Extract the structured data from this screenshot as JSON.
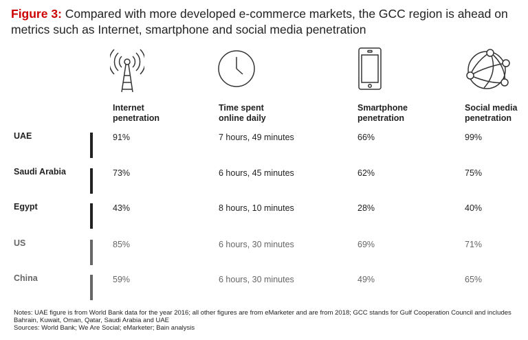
{
  "title": {
    "figure_label": "Figure 3:",
    "text": " Compared with more developed e-commerce markets, the GCC region is ahead on metrics such as Internet, smartphone and social media penetration"
  },
  "colors": {
    "accent": "#cc0000",
    "gcc_text": "#222222",
    "comparison_text": "#666666"
  },
  "chart_data": {
    "type": "table",
    "columns": [
      {
        "icon": "radio-tower-icon",
        "label": "Internet\npenetration"
      },
      {
        "icon": "clock-icon",
        "label": "Time spent\nonline daily"
      },
      {
        "icon": "smartphone-icon",
        "label": "Smartphone\npenetration"
      },
      {
        "icon": "network-globe-icon",
        "label": "Social media\npenetration"
      }
    ],
    "rows": [
      {
        "label": "UAE",
        "group": "gcc",
        "values": [
          "91%",
          "7 hours, 49 minutes",
          "66%",
          "99%"
        ]
      },
      {
        "label": "Saudi Arabia",
        "group": "gcc",
        "values": [
          "73%",
          "6 hours, 45 minutes",
          "62%",
          "75%"
        ]
      },
      {
        "label": "Egypt",
        "group": "gcc",
        "values": [
          "43%",
          "8 hours, 10 minutes",
          "28%",
          "40%"
        ]
      },
      {
        "label": "US",
        "group": "comparison",
        "values": [
          "85%",
          "6 hours, 30 minutes",
          "69%",
          "71%"
        ]
      },
      {
        "label": "China",
        "group": "comparison",
        "values": [
          "59%",
          "6 hours, 30 minutes",
          "49%",
          "65%"
        ]
      }
    ]
  },
  "notes": {
    "line1": "Notes: UAE figure is from World Bank data for the year 2016; all other figures are from eMarketer and are from 2018; GCC stands for Gulf Cooperation Council and includes",
    "line2": "Bahrain, Kuwait, Oman, Qatar, Saudi Arabia and UAE",
    "sources": "Sources: World Bank; We Are Social; eMarketer; Bain analysis"
  }
}
